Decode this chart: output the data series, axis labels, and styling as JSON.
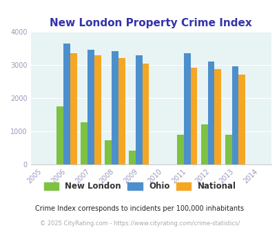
{
  "title": "New London Property Crime Index",
  "all_years": [
    2005,
    2006,
    2007,
    2008,
    2009,
    2010,
    2011,
    2012,
    2013,
    2014
  ],
  "data_years": [
    2006,
    2007,
    2008,
    2009,
    2011,
    2012,
    2013
  ],
  "new_london": [
    1750,
    1260,
    720,
    400,
    900,
    1200,
    900
  ],
  "ohio": [
    3650,
    3460,
    3420,
    3290,
    3350,
    3110,
    2950
  ],
  "national": [
    3350,
    3290,
    3210,
    3050,
    2920,
    2870,
    2710
  ],
  "colors": {
    "new_london": "#7dc242",
    "ohio": "#4d8fcc",
    "national": "#f5a623"
  },
  "ylim": [
    0,
    4000
  ],
  "yticks": [
    0,
    1000,
    2000,
    3000,
    4000
  ],
  "bg_color": "#e8f4f4",
  "legend_labels": [
    "New London",
    "Ohio",
    "National"
  ],
  "footnote1": "Crime Index corresponds to incidents per 100,000 inhabitants",
  "footnote2": "© 2025 CityRating.com - https://www.cityrating.com/crime-statistics/",
  "title_color": "#3333aa",
  "tick_color": "#9999bb",
  "footnote1_color": "#222222",
  "footnote2_color": "#aaaaaa",
  "bar_width": 0.28
}
